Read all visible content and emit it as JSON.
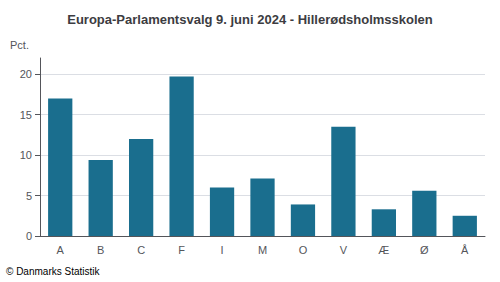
{
  "chart_data": {
    "type": "bar",
    "title": "Europa-Parlamentsvalg 9. juni 2024 - Hillerødsholmsskolen",
    "ylabel": "Pct.",
    "footer": "© Danmarks Statistik",
    "categories": [
      "A",
      "B",
      "C",
      "F",
      "I",
      "M",
      "O",
      "V",
      "Æ",
      "Ø",
      "Å"
    ],
    "values": [
      17.0,
      9.4,
      12.0,
      19.7,
      6.0,
      7.1,
      3.9,
      13.5,
      3.3,
      5.6,
      2.5
    ],
    "color": "#1a6e8e",
    "ylim": [
      0,
      22
    ],
    "yticks": [
      0,
      5,
      10,
      15,
      20
    ],
    "grid": true
  }
}
